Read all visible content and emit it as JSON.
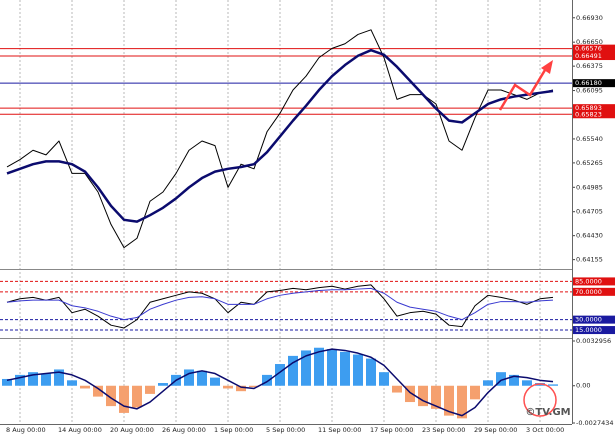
{
  "watermark": "©TV.GM",
  "chart_data": [
    {
      "type": "line",
      "ylim": [
        0.64059,
        0.67111
      ],
      "yticks": [
        {
          "value": 0.6693,
          "label": "0.66930"
        },
        {
          "value": 0.6665,
          "label": "0.66650"
        },
        0.66375,
        0.66095,
        {
          "value": 0.6554,
          "label": "0.65540"
        },
        0.65265,
        0.64985,
        0.64705,
        {
          "value": 0.6443,
          "label": "0.64430"
        },
        0.64155
      ],
      "levels": [
        {
          "value": 0.66576,
          "color": "#e01010"
        },
        {
          "value": 0.66491,
          "color": "#e01010"
        },
        {
          "value": 0.6618,
          "label": "0.66180",
          "color": "#1a1aa0",
          "box": "#000000"
        },
        {
          "value": 0.65893,
          "color": "#e01010"
        },
        {
          "value": 0.65823,
          "color": "#e01010"
        }
      ],
      "series": [
        {
          "color": "#000000",
          "width": 1,
          "values": [
            0.65218,
            0.65303,
            0.6541,
            0.65357,
            0.65516,
            0.65144,
            0.65144,
            0.64931,
            0.64559,
            0.64293,
            0.644,
            0.64825,
            0.64931,
            0.65144,
            0.6541,
            0.65516,
            0.65463,
            0.64984,
            0.6525,
            0.65197,
            0.65622,
            0.65835,
            0.66101,
            0.6626,
            0.66473,
            0.66579,
            0.66632,
            0.66739,
            0.66792,
            0.66473,
            0.65994,
            0.66048,
            0.66048,
            0.65941,
            0.65516,
            0.6541,
            0.65782,
            0.66101,
            0.66101,
            0.66048,
            0.65994,
            0.66069,
            0.66101,
            null
          ]
        },
        {
          "color": "#0b0b6e",
          "width": 2.5,
          "values": [
            0.65144,
            0.65197,
            0.6525,
            0.65282,
            0.65282,
            0.6525,
            0.65165,
            0.64984,
            0.64772,
            0.64612,
            0.64591,
            0.64665,
            0.6475,
            0.64857,
            0.64984,
            0.65091,
            0.65165,
            0.65197,
            0.65218,
            0.6525,
            0.65388,
            0.65569,
            0.6575,
            0.6592,
            0.66101,
            0.6626,
            0.66388,
            0.66494,
            0.66558,
            0.66505,
            0.66367,
            0.66207,
            0.66048,
            0.65888,
            0.6575,
            0.65729,
            0.65835,
            0.65941,
            0.65994,
            0.66026,
            0.66048,
            0.66069,
            0.6609,
            null
          ]
        }
      ]
    },
    {
      "type": "line",
      "ylim": [
        5,
        100
      ],
      "levels": [
        {
          "value": 85,
          "label": "85.0000",
          "color": "#e01010"
        },
        {
          "value": 70,
          "label": "70.0000",
          "color": "#e01010"
        },
        {
          "value": 30,
          "label": "30.0000",
          "color": "#1a1aa0"
        },
        {
          "value": 15,
          "label": "15.0000",
          "color": "#1a1aa0"
        }
      ],
      "series": [
        {
          "color": "#000000",
          "width": 1,
          "values": [
            55,
            60,
            62,
            58,
            62,
            40,
            45,
            35,
            22,
            18,
            30,
            55,
            60,
            65,
            70,
            68,
            60,
            40,
            55,
            52,
            70,
            72,
            75,
            73,
            76,
            78,
            74,
            78,
            80,
            60,
            35,
            40,
            42,
            38,
            22,
            20,
            50,
            65,
            62,
            58,
            52,
            60,
            62,
            null
          ]
        },
        {
          "color": "#3a3ad0",
          "width": 1,
          "values": [
            55,
            57,
            58,
            58,
            58,
            50,
            47,
            42,
            35,
            30,
            33,
            45,
            52,
            58,
            62,
            63,
            60,
            52,
            52,
            52,
            60,
            65,
            68,
            70,
            72,
            73,
            73,
            74,
            75,
            68,
            55,
            48,
            45,
            42,
            35,
            30,
            40,
            52,
            56,
            56,
            55,
            57,
            58,
            null
          ]
        }
      ]
    },
    {
      "type": "bar",
      "ylim": [
        -0.0027434,
        0.0032956
      ],
      "yticks": [
        0.0032956,
        {
          "value": 0,
          "label": "0.00"
        },
        -0.0027434
      ],
      "colors": {
        "positive": "#3d9df0",
        "negative": "#f5a06e"
      },
      "values": [
        0.0005,
        0.0008,
        0.001,
        0.0009,
        0.0012,
        0.0004,
        -0.0002,
        -0.0008,
        -0.0015,
        -0.002,
        -0.0016,
        -0.0006,
        0.0002,
        0.0008,
        0.0012,
        0.0011,
        0.0006,
        -0.0002,
        -0.0004,
        -0.0001,
        0.0008,
        0.0016,
        0.0022,
        0.0026,
        0.0028,
        0.0027,
        0.0025,
        0.0023,
        0.002,
        0.001,
        -0.0005,
        -0.0012,
        -0.0015,
        -0.0017,
        -0.0022,
        -0.0024,
        -0.001,
        0.0004,
        0.001,
        0.0008,
        0.0004,
        0.0002,
        0.0001,
        null
      ],
      "series": [
        {
          "color": "#0b0b6e",
          "width": 1.5,
          "values": [
            0.0004,
            0.0006,
            0.0008,
            0.0009,
            0.001,
            0.0008,
            0.0004,
            -0.0002,
            -0.0009,
            -0.0015,
            -0.0017,
            -0.0012,
            -0.0004,
            0.0004,
            0.0009,
            0.0011,
            0.0009,
            0.0004,
            -0.0001,
            -0.0002,
            0.0003,
            0.001,
            0.0017,
            0.0022,
            0.0025,
            0.0027,
            0.0026,
            0.0024,
            0.0021,
            0.0015,
            0.0005,
            -0.0005,
            -0.0011,
            -0.0015,
            -0.0019,
            -0.0022,
            -0.0016,
            -0.0005,
            0.0004,
            0.0007,
            0.0006,
            0.0004,
            0.0003,
            null
          ]
        }
      ],
      "categories": [
        null,
        "8 Aug 00:00",
        null,
        null,
        null,
        "14 Aug 00:00",
        null,
        null,
        null,
        "20 Aug 00:00",
        null,
        null,
        null,
        "26 Aug 00:00",
        null,
        null,
        null,
        "1 Sep 00:00",
        null,
        null,
        null,
        "5 Sep 00:00",
        null,
        null,
        null,
        "11 Sep 00:00",
        null,
        null,
        null,
        "17 Sep 00:00",
        null,
        null,
        null,
        "23 Sep 00:00",
        null,
        null,
        null,
        "29 Sep 00:00",
        null,
        null,
        null,
        "3 Oct 00:00",
        null,
        null
      ]
    }
  ]
}
